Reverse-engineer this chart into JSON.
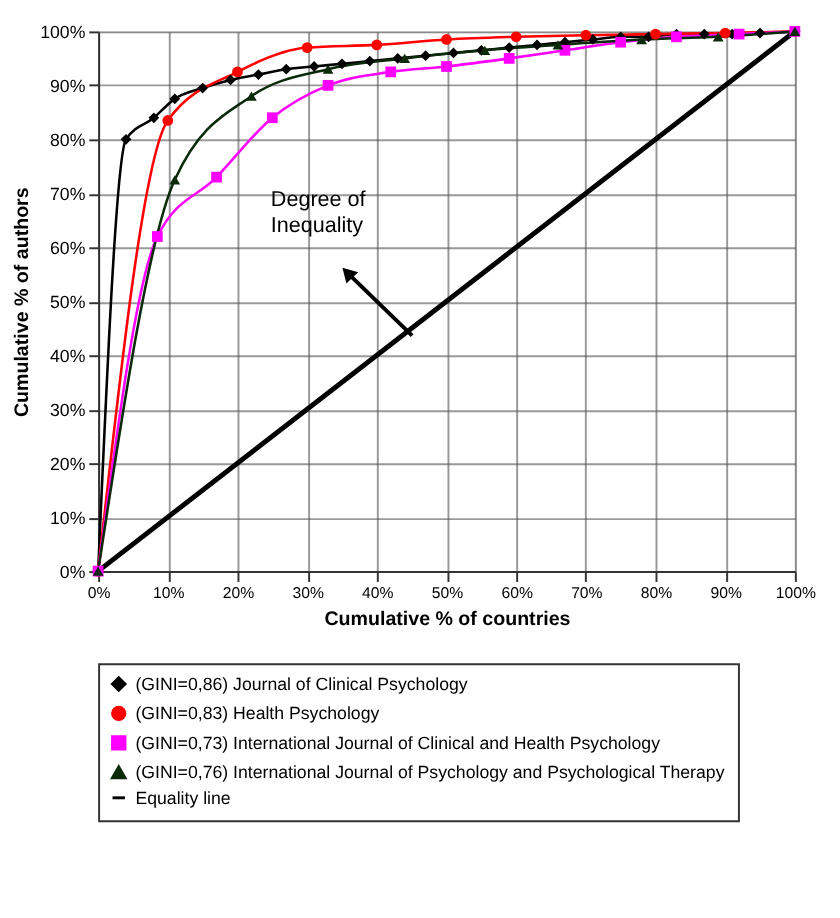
{
  "chart_data": {
    "type": "line",
    "xlabel": "Cumulative % of countries",
    "ylabel": "Cumulative % of authors",
    "xlim": [
      0,
      100
    ],
    "ylim": [
      0,
      100
    ],
    "xticks": [
      {
        "value": 0,
        "label": "0%"
      },
      {
        "value": 10,
        "label": "10%"
      },
      {
        "value": 20,
        "label": "20%"
      },
      {
        "value": 30,
        "label": "30%"
      },
      {
        "value": 40,
        "label": "40%"
      },
      {
        "value": 50,
        "label": "50%"
      },
      {
        "value": 60,
        "label": "60%"
      },
      {
        "value": 70,
        "label": "70%"
      },
      {
        "value": 80,
        "label": "80%"
      },
      {
        "value": 90,
        "label": "90%"
      },
      {
        "value": 100,
        "label": "100%"
      }
    ],
    "yticks": [
      {
        "value": 0,
        "label": "0%"
      },
      {
        "value": 10,
        "label": "10%"
      },
      {
        "value": 20,
        "label": "20%"
      },
      {
        "value": 30,
        "label": "30%"
      },
      {
        "value": 40,
        "label": "40%"
      },
      {
        "value": 50,
        "label": "50%"
      },
      {
        "value": 60,
        "label": "60%"
      },
      {
        "value": 70,
        "label": "70%"
      },
      {
        "value": 80,
        "label": "80%"
      },
      {
        "value": 90,
        "label": "90%"
      },
      {
        "value": 100,
        "label": "100%"
      }
    ],
    "grid": true,
    "legend": "bottom",
    "annotations": [
      "Degree of Inequality"
    ],
    "series": [
      {
        "name": "(GINI=0,86) Journal of Clinical Psychology",
        "color": "#000000",
        "marker": "diamond",
        "x": [
          0,
          4,
          8,
          11,
          15,
          19,
          23,
          27,
          31,
          35,
          39,
          43,
          47,
          51,
          55,
          59,
          63,
          67,
          71,
          75,
          79,
          83,
          87,
          91,
          95,
          100
        ],
        "values": [
          0,
          80,
          84,
          87.5,
          89.5,
          91,
          92,
          93,
          93.5,
          94,
          94.5,
          95,
          95.5,
          96,
          96.5,
          97,
          97.5,
          98,
          98.5,
          99,
          99,
          99.5,
          99.5,
          99.5,
          99.7,
          100
        ]
      },
      {
        "name": "(GINI=0,83) Health Psychology",
        "color": "#ff0000",
        "marker": "circle",
        "x": [
          0,
          10,
          20,
          30,
          40,
          50,
          60,
          70,
          80,
          90,
          100
        ],
        "values": [
          0,
          83.5,
          92.5,
          97,
          97.5,
          98.5,
          99,
          99.3,
          99.5,
          99.7,
          100
        ]
      },
      {
        "name": "(GINI=0,73) International Journal of Clinical and Health Psychology",
        "color": "#ff00ff",
        "marker": "square",
        "x": [
          0,
          8.5,
          17,
          25,
          33,
          42,
          50,
          59,
          67,
          75,
          83,
          92,
          100
        ],
        "values": [
          0,
          62,
          73,
          84,
          90,
          92.5,
          93.5,
          95,
          96.5,
          98,
          99,
          99.5,
          100
        ]
      },
      {
        "name": "(GINI=0,76) International Journal of Psychology and Psychological Therapy",
        "color": "#0a2a0a",
        "marker": "triangle",
        "x": [
          0,
          11,
          22,
          33,
          44,
          55.5,
          66,
          78,
          89,
          100
        ],
        "values": [
          0,
          72.5,
          88,
          93,
          95,
          96.5,
          97.5,
          98.5,
          99,
          100
        ]
      },
      {
        "name": "Equality line",
        "color": "#000000",
        "marker": "none",
        "x": [
          0,
          100
        ],
        "values": [
          0,
          100
        ]
      }
    ]
  }
}
